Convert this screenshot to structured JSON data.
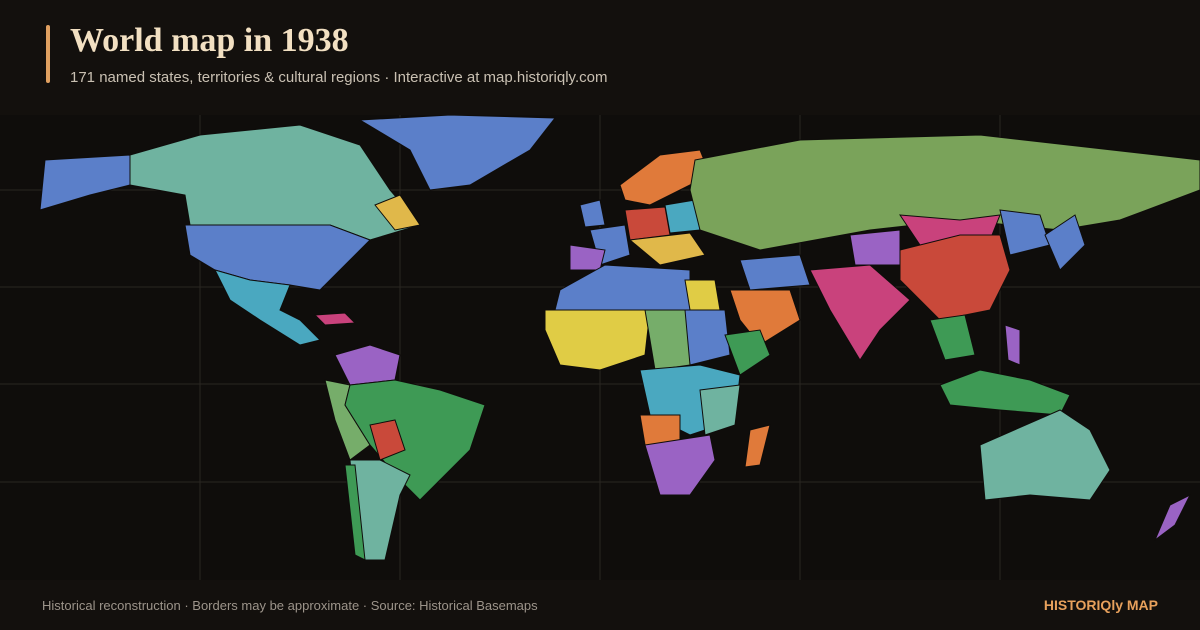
{
  "header": {
    "title": "World map in 1938",
    "subtitle": "171 named states, territories & cultural regions · Interactive at map.historiqly.com"
  },
  "footer": {
    "note": "Historical reconstruction · Borders may be approximate · Source: Historical Basemaps",
    "brand": "HISTORIQly MAP"
  }
}
